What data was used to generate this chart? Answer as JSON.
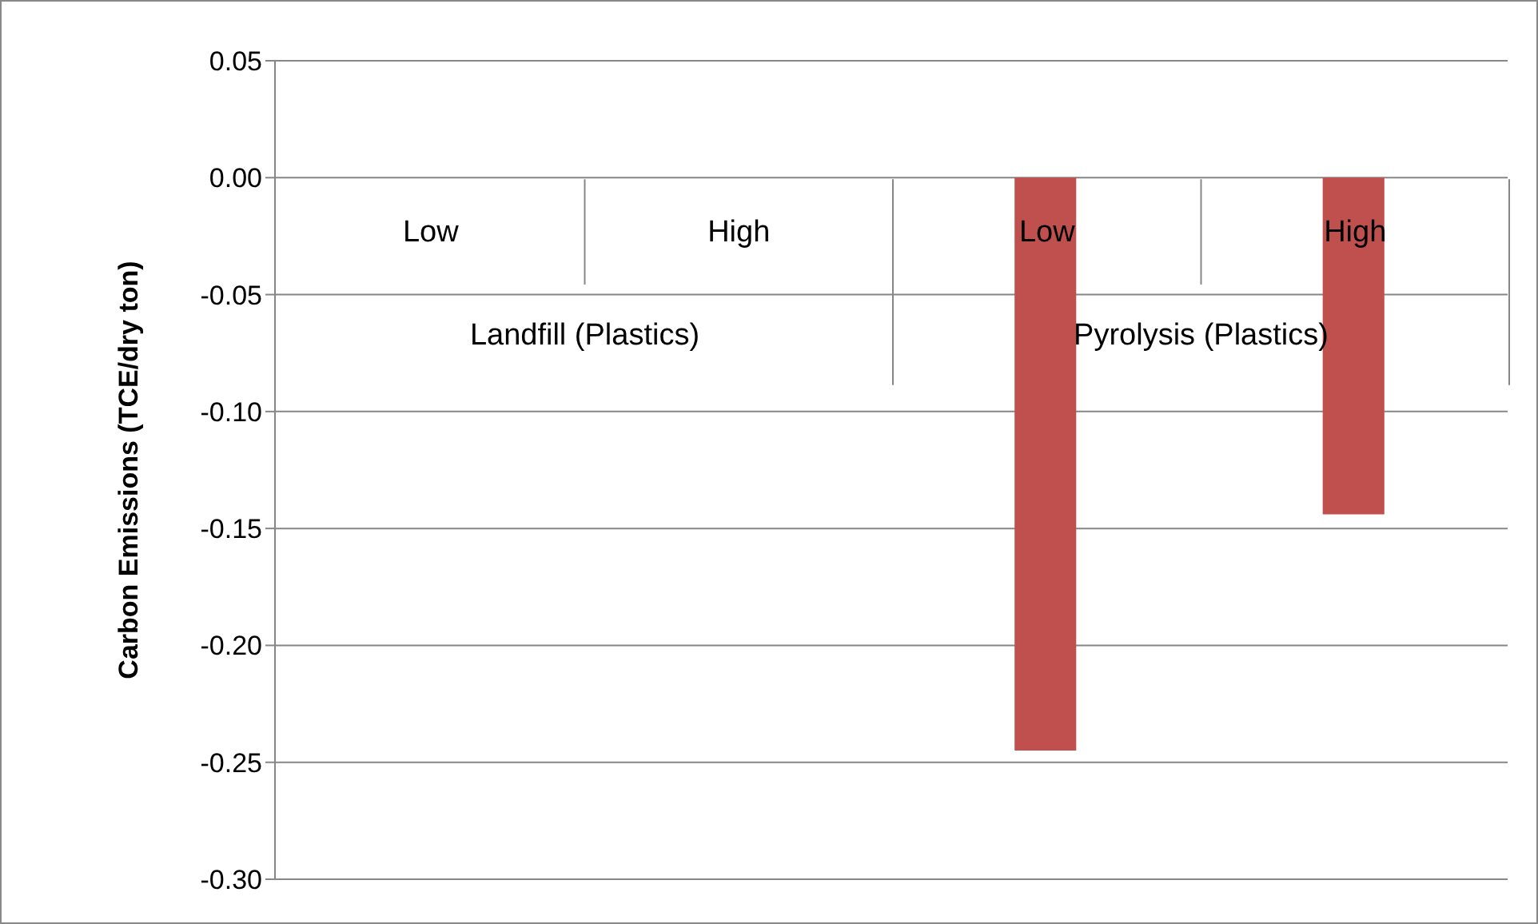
{
  "chart_data": {
    "type": "bar",
    "categories": [
      "Low",
      "High",
      "Low",
      "High"
    ],
    "values": [
      0,
      0,
      -0.245,
      -0.144
    ],
    "color": "#c0504d",
    "ylabel": "Carbon Emissions  (TCE/dry ton)",
    "annotations": [
      "Landfill (Plastics)",
      "Pyrolysis (Plastics)"
    ],
    "ylim": [
      -0.3,
      0.05
    ],
    "yticks": [
      {
        "value": 0.05,
        "label": "0.05"
      },
      {
        "value": 0,
        "label": "0.00"
      },
      {
        "value": -0.05,
        "label": "-0.05"
      },
      {
        "value": -0.1,
        "label": "-0.10"
      },
      {
        "value": -0.15,
        "label": "-0.15"
      },
      {
        "value": -0.2,
        "label": "-0.20"
      },
      {
        "value": -0.25,
        "label": "-0.25"
      },
      {
        "value": -0.3,
        "label": "-0.30"
      }
    ],
    "grid": "y",
    "legend": false
  }
}
